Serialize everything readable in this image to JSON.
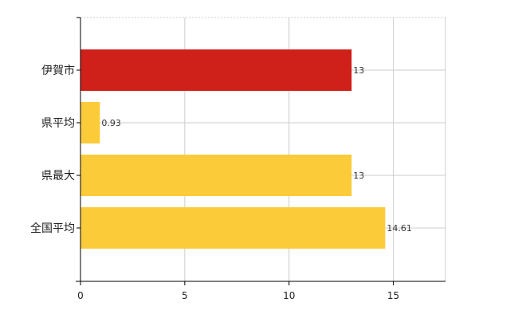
{
  "chart_data": {
    "type": "bar",
    "orientation": "horizontal",
    "categories": [
      "伊賀市",
      "県平均",
      "県最大",
      "全国平均"
    ],
    "values": [
      13,
      0.93,
      13,
      14.61
    ],
    "value_labels": [
      "13",
      "0.93",
      "13",
      "14.61"
    ],
    "bar_colors": [
      "#d0201a",
      "#fccb3a",
      "#fccb3a",
      "#fccb3a"
    ],
    "title": "",
    "xlabel": "",
    "ylabel": "",
    "xlim": [
      0,
      17.5
    ],
    "xticks": [
      0,
      5,
      10,
      15
    ],
    "xtick_labels": [
      "0",
      "5",
      "10",
      "15"
    ],
    "grid": true,
    "grid_color": "#cccccc",
    "legend": false
  }
}
